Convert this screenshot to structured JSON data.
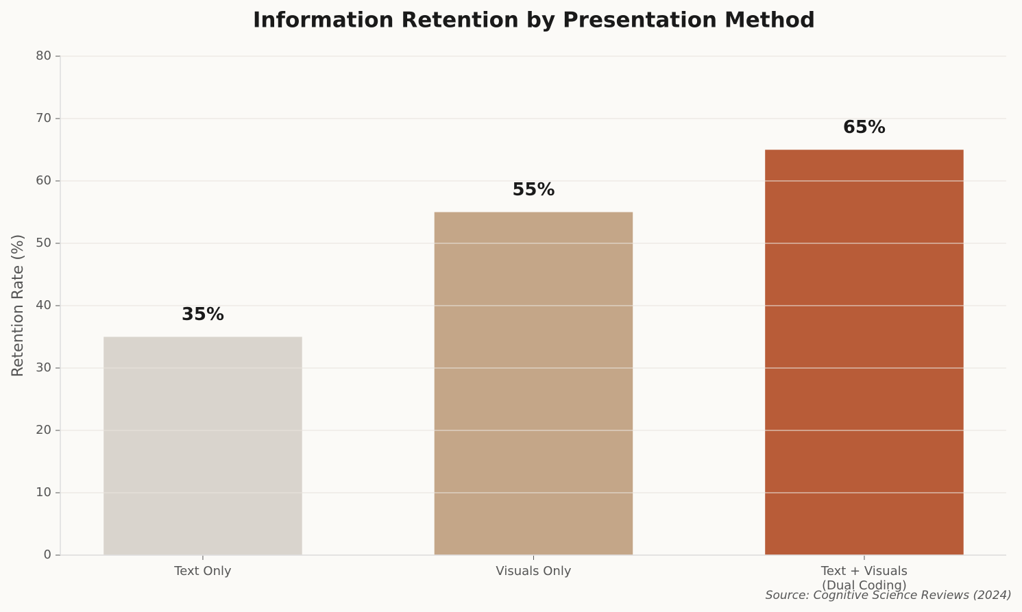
{
  "chart_data": {
    "type": "bar",
    "title": "Information Retention by Presentation Method",
    "categories": [
      "Text Only",
      "Visuals Only",
      "Text + Visuals\n(Dual Coding)"
    ],
    "values": [
      35,
      55,
      65
    ],
    "value_labels": [
      "35%",
      "55%",
      "65%"
    ],
    "colors": [
      "#d9d4cd",
      "#c4a688",
      "#b85c38"
    ],
    "y_label": "Retention Rate (%)",
    "ylim": [
      0,
      80
    ],
    "yticks": [
      0,
      10,
      20,
      30,
      40,
      50,
      60,
      70,
      80
    ],
    "grid": true,
    "source": "Source: Cognitive Science Reviews (2024)"
  }
}
